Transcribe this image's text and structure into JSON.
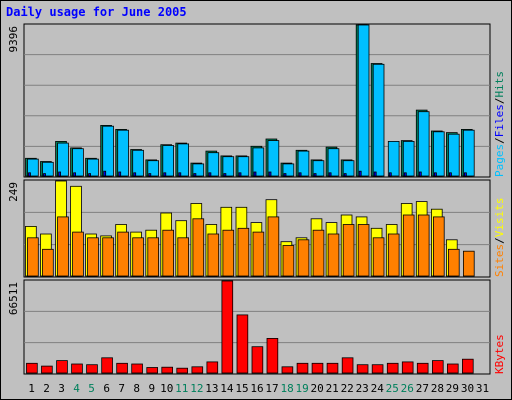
{
  "chart_data": {
    "type": "bar",
    "title": "Daily usage for June 2005",
    "background_color": "#c0c0c0",
    "plot_background_color": "#c0c0c0",
    "gridlines": true,
    "legend_placement": "right (rotated, per panel)",
    "categories": [
      "1",
      "2",
      "3",
      "4",
      "5",
      "6",
      "7",
      "8",
      "9",
      "10",
      "11",
      "12",
      "13",
      "14",
      "15",
      "16",
      "17",
      "18",
      "19",
      "20",
      "21",
      "22",
      "23",
      "24",
      "25",
      "26",
      "27",
      "28",
      "29",
      "30",
      "31"
    ],
    "weekend_categories": [
      "4",
      "5",
      "11",
      "12",
      "18",
      "19",
      "25",
      "26"
    ],
    "weekday_label_color": "#000000",
    "weekend_label_color": "#00805c",
    "panels": [
      {
        "id": "hits-files-pages",
        "y_max_label": "9396",
        "ylim": [
          0,
          9396
        ],
        "legend": [
          {
            "text": "Pages",
            "color": "#00c0ff"
          },
          {
            "text": "/",
            "color": "#000000"
          },
          {
            "text": "Files",
            "color": "#0000ff"
          },
          {
            "text": "/",
            "color": "#000000"
          },
          {
            "text": "Hits",
            "color": "#00805c"
          }
        ],
        "series": [
          {
            "name": "Hits",
            "color": "#00805c",
            "values": [
              1100,
              900,
              2150,
              1750,
              1100,
              3150,
              2900,
              1650,
              1000,
              1950,
              2050,
              800,
              1550,
              1250,
              1250,
              1850,
              2300,
              800,
              1600,
              1000,
              1800,
              1000,
              9396,
              7000,
              null,
              2200,
              4100,
              2800,
              2700,
              2900,
              null
            ]
          },
          {
            "name": "Files",
            "color": "#00c0ff",
            "values": [
              1050,
              850,
              2050,
              1700,
              1050,
              3100,
              2850,
              1600,
              950,
              1900,
              2000,
              750,
              1450,
              1200,
              1200,
              1750,
              2200,
              750,
              1550,
              950,
              1700,
              950,
              9396,
              6950,
              2150,
              2150,
              4000,
              2750,
              2600,
              2850,
              null
            ]
          },
          {
            "name": "Pages",
            "color": "#0000ff",
            "values": [
              200,
              150,
              250,
              200,
              150,
              300,
              250,
              200,
              150,
              200,
              200,
              150,
              200,
              150,
              200,
              250,
              250,
              150,
              200,
              150,
              200,
              150,
              300,
              250,
              200,
              200,
              250,
              200,
              200,
              200,
              null
            ]
          }
        ]
      },
      {
        "id": "visits-sites",
        "y_max_label": "249",
        "ylim": [
          0,
          249
        ],
        "legend": [
          {
            "text": "Sites",
            "color": "#ff8000"
          },
          {
            "text": "/",
            "color": "#000000"
          },
          {
            "text": "Visits",
            "color": "#ffff00"
          }
        ],
        "series": [
          {
            "name": "Visits",
            "color": "#ffff00",
            "values": [
              130,
              110,
              249,
              235,
              110,
              105,
              135,
              115,
              120,
              165,
              145,
              190,
              135,
              180,
              180,
              140,
              200,
              90,
              100,
              150,
              140,
              160,
              155,
              125,
              135,
              190,
              195,
              175,
              95,
              null,
              null
            ]
          },
          {
            "name": "Sites",
            "color": "#ff8000",
            "values": [
              100,
              70,
              155,
              115,
              100,
              100,
              115,
              100,
              100,
              120,
              100,
              150,
              110,
              120,
              125,
              115,
              155,
              80,
              95,
              120,
              110,
              135,
              135,
              100,
              110,
              160,
              160,
              155,
              70,
              65,
              null
            ]
          }
        ]
      },
      {
        "id": "kbytes",
        "y_max_label": "66511",
        "ylim": [
          0,
          66511
        ],
        "legend": [
          {
            "text": "KBytes",
            "color": "#ff0000"
          }
        ],
        "series": [
          {
            "name": "KBytes",
            "color": "#ff0000",
            "values": [
              7000,
              5000,
              9000,
              6500,
              6000,
              11000,
              7000,
              6500,
              4000,
              4200,
              3500,
              4500,
              8000,
              66511,
              42000,
              19000,
              25000,
              4500,
              7000,
              7000,
              7000,
              11000,
              6000,
              6000,
              7000,
              8000,
              7000,
              9000,
              6500,
              10000,
              null
            ]
          }
        ]
      }
    ]
  }
}
